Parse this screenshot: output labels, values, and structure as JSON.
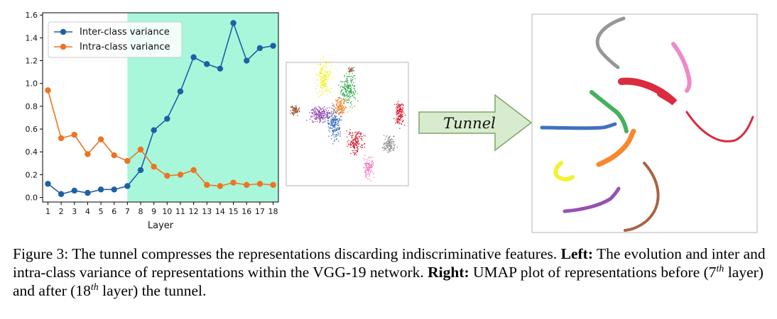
{
  "chart_data": {
    "type": "line",
    "xlabel": "Layer",
    "ylabel": "",
    "x": [
      1,
      2,
      3,
      4,
      5,
      6,
      7,
      8,
      9,
      10,
      11,
      12,
      13,
      14,
      15,
      16,
      17,
      18
    ],
    "xticks": [
      "1",
      "2",
      "3",
      "4",
      "5",
      "6",
      "7",
      "8",
      "9",
      "10",
      "11",
      "12",
      "13",
      "14",
      "15",
      "16",
      "17",
      "18"
    ],
    "ylim": [
      -0.04,
      1.62
    ],
    "yticks": [
      "0.0",
      "0.2",
      "0.4",
      "0.6",
      "0.8",
      "1.0",
      "1.2",
      "1.4",
      "1.6"
    ],
    "ytick_values": [
      0.0,
      0.2,
      0.4,
      0.6,
      0.8,
      1.0,
      1.2,
      1.4,
      1.6
    ],
    "shaded_region": {
      "from": 7,
      "to": 18.9,
      "color": "#a8f7da"
    },
    "legend_position": "top-left",
    "series": [
      {
        "name": "Inter-class variance",
        "color": "#1f5fa6",
        "values": [
          0.12,
          0.03,
          0.06,
          0.04,
          0.07,
          0.07,
          0.1,
          0.24,
          0.59,
          0.69,
          0.93,
          1.23,
          1.17,
          1.13,
          1.53,
          1.2,
          1.31,
          1.33
        ]
      },
      {
        "name": "Intra-class variance",
        "color": "#ee7322",
        "values": [
          0.94,
          0.52,
          0.55,
          0.38,
          0.51,
          0.37,
          0.32,
          0.42,
          0.27,
          0.19,
          0.2,
          0.24,
          0.11,
          0.1,
          0.13,
          0.11,
          0.12,
          0.11
        ]
      }
    ]
  },
  "arrow_label": "Tunnel",
  "caption": {
    "figure_label": "Figure 3:",
    "sentence1": "The tunnel compresses the representations discarding indiscriminative features.",
    "left_label": "Left:",
    "left_text": "The evolution and inter and intra-class variance of representations within the VGG-19 network.",
    "right_label": "Right:",
    "right_text_1": "UMAP plot of representations before (7",
    "sup_1": "th",
    "right_text_2": "layer) and after (18",
    "sup_2": "th",
    "right_text_3": "layer) the tunnel."
  },
  "umap_colors": {
    "blue": "#2a62b8",
    "orange": "#f77b1a",
    "green": "#31a84a",
    "red": "#d6142a",
    "purple": "#8a3fa8",
    "brown": "#a0522d",
    "pink": "#ef7cc0",
    "gray": "#8c8c8c",
    "yellow": "#f2ef1d"
  }
}
